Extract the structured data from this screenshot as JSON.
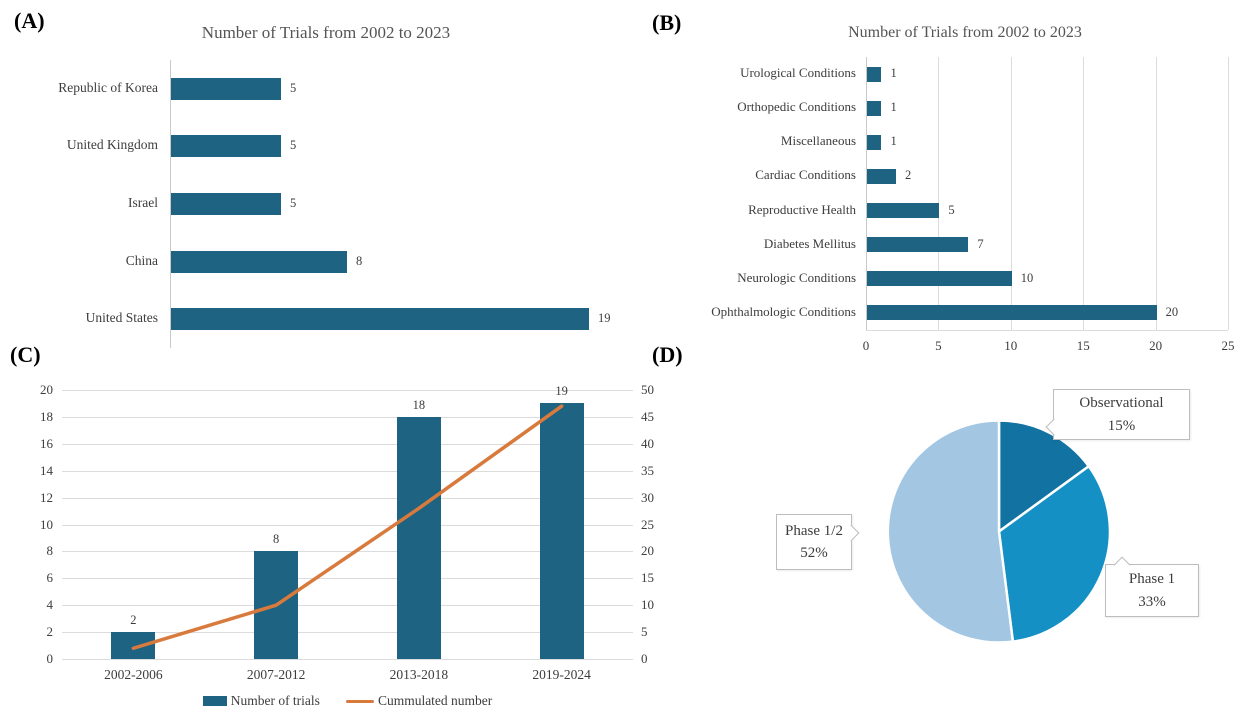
{
  "figure_bg": "#ffffff",
  "colors": {
    "bar_teal": "#1e6382",
    "line_orange": "#d97a3d",
    "pie_dark_blue": "#1273a2",
    "pie_mid_blue": "#1490c5",
    "pie_light_blue": "#a3c6e3",
    "gridline": "#dcdcdc",
    "axis_text": "#3d3d3d",
    "title_text": "#545454"
  },
  "chart_data": [
    {
      "panel": "(A)",
      "type": "bar",
      "orientation": "horizontal",
      "title": "Number of Trials from 2002 to 2023",
      "categories": [
        "Republic of Korea",
        "United Kingdom",
        "Israel",
        "China",
        "United States"
      ],
      "values": [
        5,
        5,
        5,
        8,
        19
      ],
      "data_labels": [
        5,
        5,
        5,
        8,
        19
      ],
      "xlim": [
        0,
        19
      ],
      "grid": false,
      "bar_color": "#1e6382"
    },
    {
      "panel": "(B)",
      "type": "bar",
      "orientation": "horizontal",
      "title": "Number of Trials from 2002 to 2023",
      "categories": [
        "Urological Conditions",
        "Orthopedic Conditions",
        "Miscellaneous",
        "Cardiac Conditions",
        "Reproductive Health",
        "Diabetes Mellitus",
        "Neurologic Conditions",
        "Ophthalmologic Conditions"
      ],
      "values": [
        1,
        1,
        1,
        2,
        5,
        7,
        10,
        20
      ],
      "data_labels": [
        1,
        1,
        1,
        2,
        5,
        7,
        10,
        20
      ],
      "x_ticks": [
        0,
        5,
        10,
        15,
        20,
        25
      ],
      "xlim": [
        0,
        25
      ],
      "grid": true,
      "bar_color": "#1e6382"
    },
    {
      "panel": "(C)",
      "type": "bar+line",
      "title": "",
      "categories": [
        "2002-2006",
        "2007-2012",
        "2013-2018",
        "2019-2024"
      ],
      "series": [
        {
          "name": "Number of trials",
          "type": "bar",
          "axis": "left",
          "values": [
            2,
            8,
            18,
            19
          ],
          "color": "#1e6382"
        },
        {
          "name": "Cummulated number",
          "type": "line",
          "axis": "right",
          "values": [
            2,
            10,
            28,
            47
          ],
          "color": "#d97a3d"
        }
      ],
      "left_ticks": [
        0,
        2,
        4,
        6,
        8,
        10,
        12,
        14,
        16,
        18,
        20
      ],
      "right_ticks": [
        0,
        5,
        10,
        15,
        20,
        25,
        30,
        35,
        40,
        45,
        50
      ],
      "ylim_left": [
        0,
        20
      ],
      "ylim_right": [
        0,
        50
      ],
      "grid": true,
      "legend_position": "bottom"
    },
    {
      "panel": "(D)",
      "type": "pie",
      "title": "",
      "slices": [
        {
          "label": "Observational",
          "pct_label": "15%",
          "value": 15,
          "color": "#1273a2"
        },
        {
          "label": "Phase 1",
          "pct_label": "33%",
          "value": 33,
          "color": "#1490c5"
        },
        {
          "label": "Phase 1/2",
          "pct_label": "52%",
          "value": 52,
          "color": "#a3c6e3"
        }
      ],
      "start_angle_deg": 0,
      "direction": "clockwise"
    }
  ]
}
